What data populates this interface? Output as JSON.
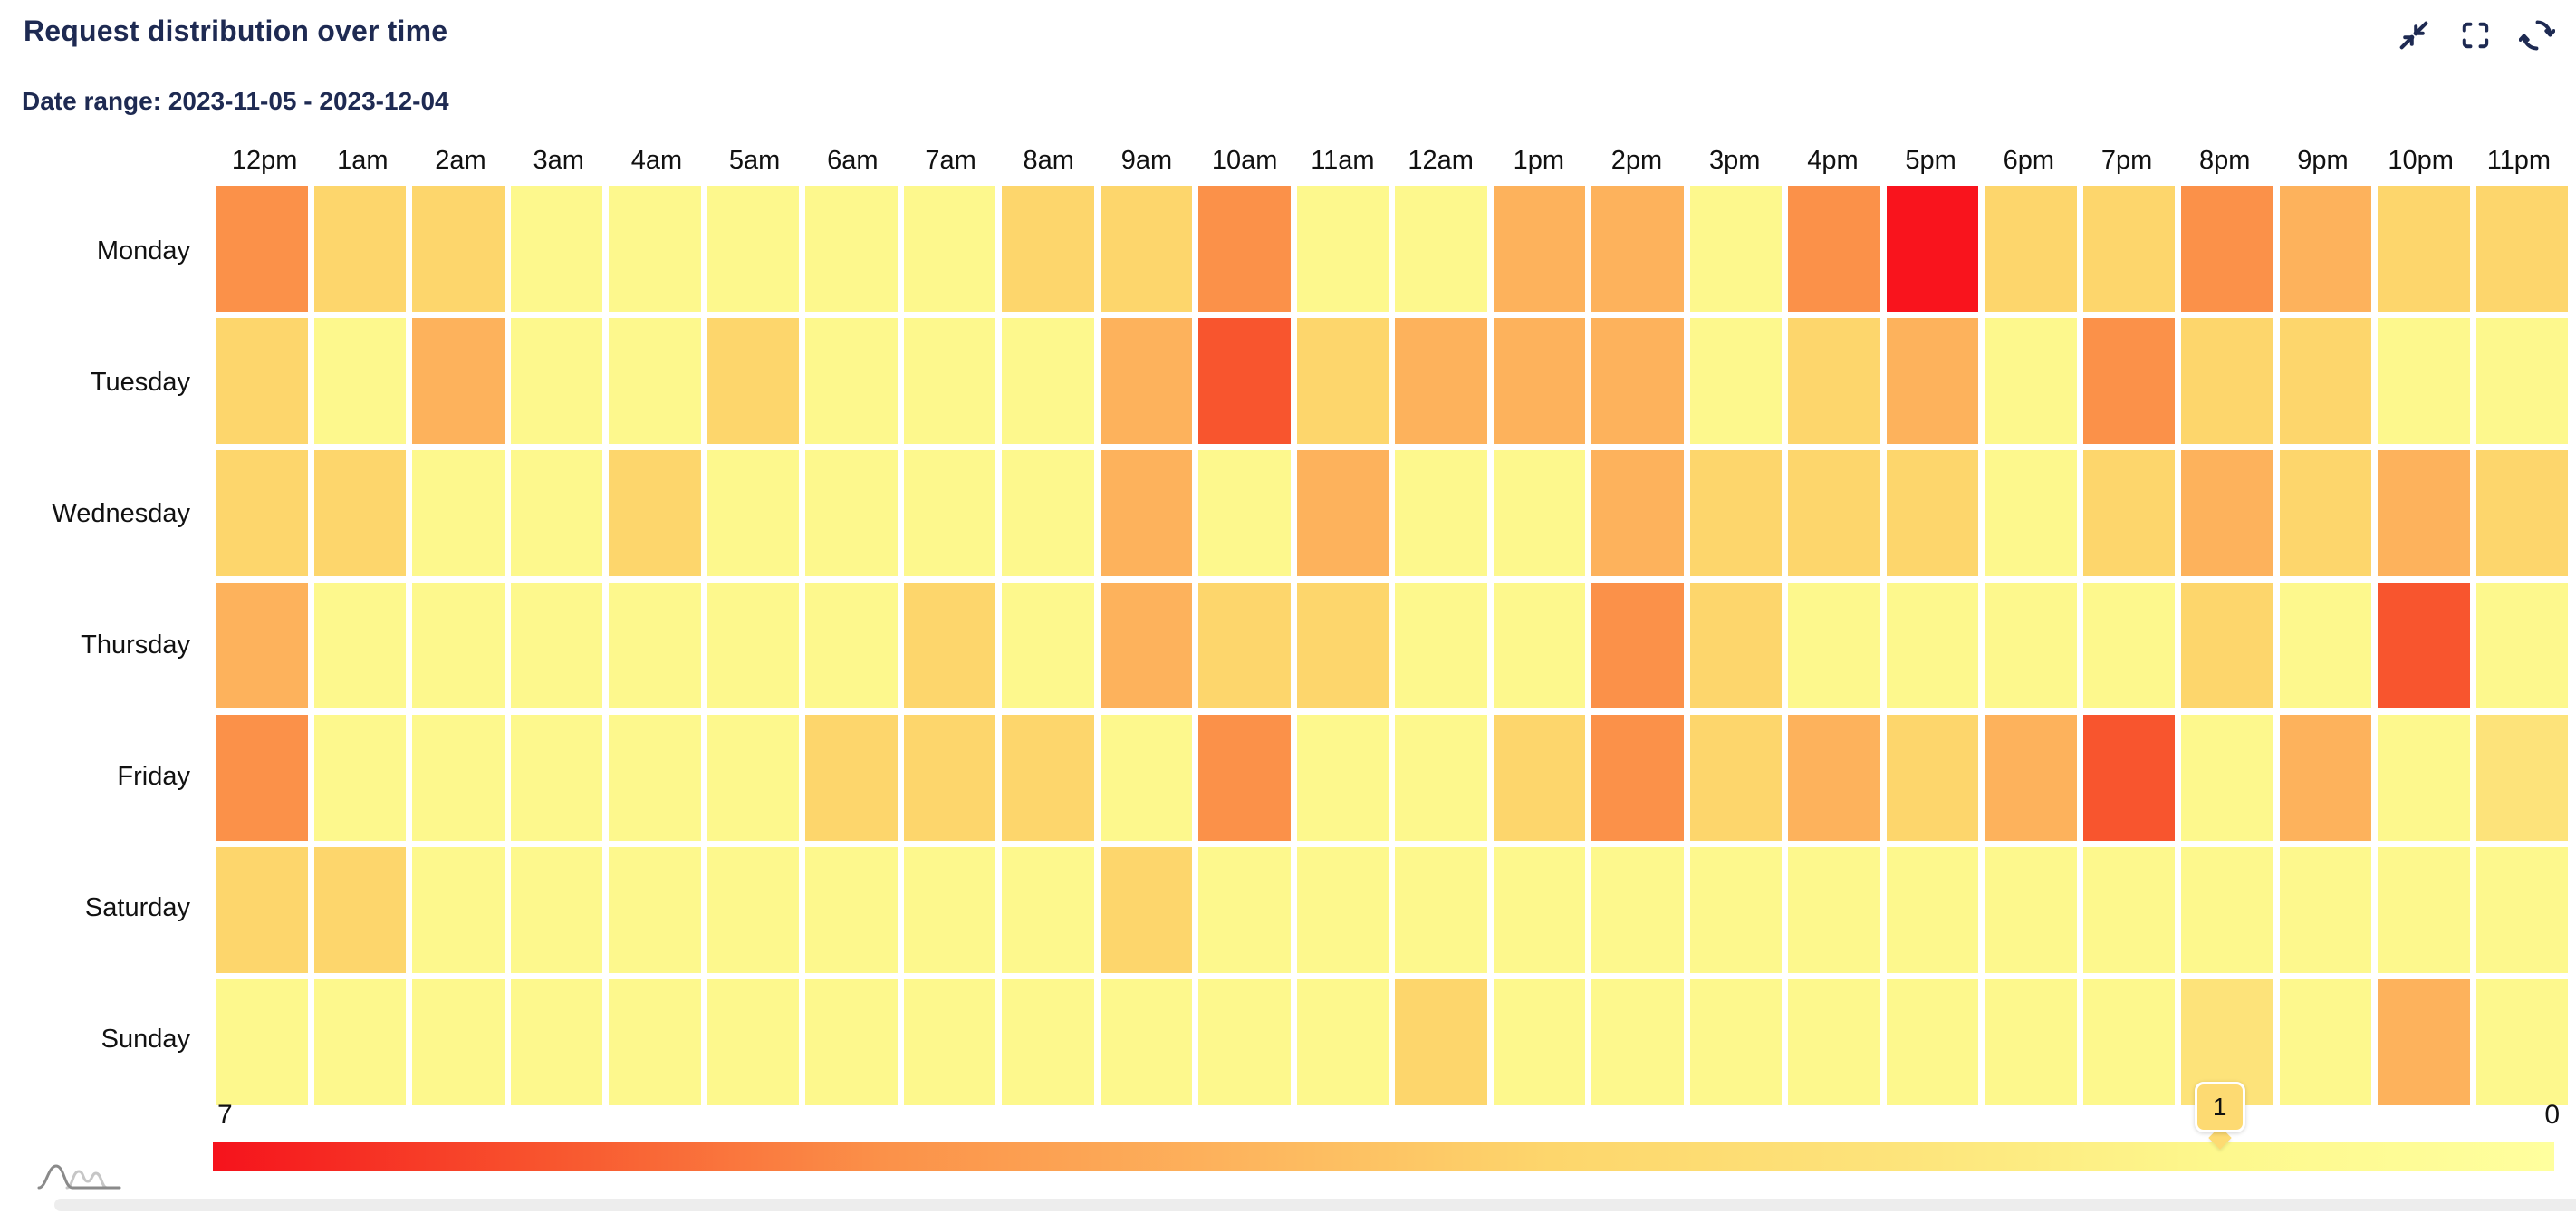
{
  "header": {
    "title": "Request distribution over time",
    "date_range": "Date range: 2023-11-05 - 2023-12-04"
  },
  "toolbar": {
    "icons": [
      "collapse",
      "fullscreen",
      "refresh"
    ]
  },
  "chart_data": {
    "type": "heatmap",
    "title": "Request distribution over time",
    "subtitle": "Date range: 2023-11-05 - 2023-12-04",
    "x_categories": [
      "12pm",
      "1am",
      "2am",
      "3am",
      "4am",
      "5am",
      "6am",
      "7am",
      "8am",
      "9am",
      "10am",
      "11am",
      "12am",
      "1pm",
      "2pm",
      "3pm",
      "4pm",
      "5pm",
      "6pm",
      "7pm",
      "8pm",
      "9pm",
      "10pm",
      "11pm"
    ],
    "y_categories": [
      "Monday",
      "Tuesday",
      "Wednesday",
      "Thursday",
      "Friday",
      "Saturday",
      "Sunday"
    ],
    "values": [
      [
        5,
        3,
        3,
        1,
        1,
        1,
        1,
        1,
        3,
        3,
        5,
        1,
        1,
        4,
        4,
        1,
        5,
        7,
        3,
        3,
        5,
        4,
        3,
        3
      ],
      [
        3,
        1,
        4,
        1,
        1,
        3,
        1,
        1,
        1,
        4,
        6,
        3,
        4,
        4,
        4,
        1,
        3,
        4,
        1,
        5,
        3,
        3,
        1,
        1
      ],
      [
        3,
        3,
        1,
        1,
        3,
        1,
        1,
        1,
        1,
        4,
        1,
        4,
        1,
        1,
        4,
        3,
        3,
        3,
        1,
        3,
        4,
        3,
        4,
        3
      ],
      [
        4,
        1,
        1,
        1,
        1,
        1,
        1,
        3,
        1,
        4,
        3,
        3,
        1,
        1,
        5,
        3,
        1,
        1,
        1,
        1,
        3,
        1,
        6,
        1
      ],
      [
        5,
        1,
        1,
        1,
        1,
        1,
        3,
        3,
        3,
        1,
        5,
        1,
        1,
        3,
        5,
        3,
        4,
        3,
        4,
        6,
        1,
        4,
        1,
        2
      ],
      [
        3,
        3,
        1,
        1,
        1,
        1,
        1,
        1,
        1,
        3,
        1,
        1,
        1,
        1,
        1,
        1,
        1,
        1,
        1,
        1,
        1,
        1,
        1,
        1
      ],
      [
        1,
        1,
        1,
        1,
        1,
        1,
        1,
        1,
        1,
        1,
        1,
        1,
        3,
        1,
        1,
        1,
        1,
        1,
        1,
        1,
        2,
        1,
        4,
        1
      ]
    ],
    "value_range": [
      0,
      7
    ],
    "palette": [
      "#ffff9e",
      "#fdf88d",
      "#fde37a",
      "#fdd66c",
      "#fdb25c",
      "#fb9149",
      "#f8552e",
      "#f9141d"
    ],
    "gradient_stops": [
      [
        "#f5121c",
        0
      ],
      [
        "#f8552e",
        0.143
      ],
      [
        "#fb9149",
        0.286
      ],
      [
        "#fdb25c",
        0.429
      ],
      [
        "#fdd66c",
        0.571
      ],
      [
        "#fde37a",
        0.714
      ],
      [
        "#fdf88d",
        0.857
      ],
      [
        "#ffff9e",
        1
      ]
    ],
    "legend": {
      "orientation": "horizontal",
      "left_label": "7",
      "right_label": "0",
      "indicator": {
        "value": 1,
        "label": "1"
      }
    },
    "grid": true
  },
  "colors": {
    "title": "#1e2a52",
    "icon": "#1e2a52",
    "axis_label": "#111111",
    "background": "#ffffff",
    "indicator_fill": "#fdda72",
    "scrollbar": "#ededed"
  }
}
